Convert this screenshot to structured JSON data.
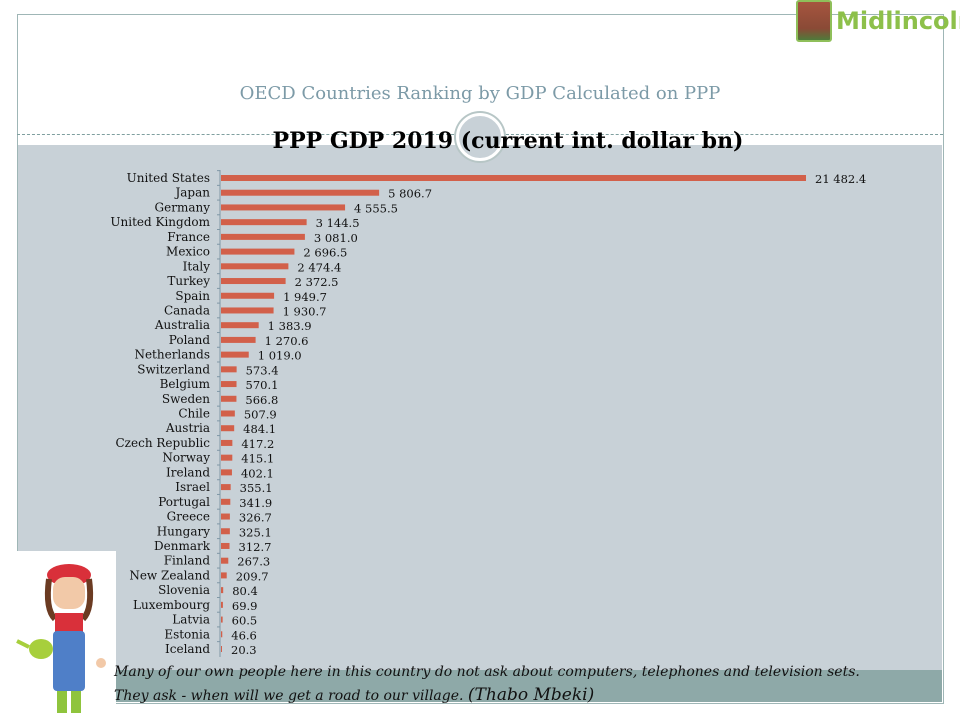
{
  "logo": {
    "text": "Midlincoln"
  },
  "header": {
    "subtitle": "OECD Countries Ranking by GDP Calculated on PPP"
  },
  "chart_data": {
    "type": "bar",
    "orientation": "horizontal",
    "title": "PPP GDP 2019 (current int. dollar bn)",
    "xlabel": "",
    "ylabel": "",
    "categories": [
      "United States",
      "Japan",
      "Germany",
      "United Kingdom",
      "France",
      "Mexico",
      "Italy",
      "Turkey",
      "Spain",
      "Canada",
      "Australia",
      "Poland",
      "Netherlands",
      "Switzerland",
      "Belgium",
      "Sweden",
      "Chile",
      "Austria",
      "Czech Republic",
      "Norway",
      "Ireland",
      "Israel",
      "Portugal",
      "Greece",
      "Hungary",
      "Denmark",
      "Finland",
      "New Zealand",
      "Slovenia",
      "Luxembourg",
      "Latvia",
      "Estonia",
      "Iceland"
    ],
    "values": [
      21482.4,
      5806.7,
      4555.5,
      3144.5,
      3081.0,
      2696.5,
      2474.4,
      2372.5,
      1949.7,
      1930.7,
      1383.9,
      1270.6,
      1019.0,
      573.4,
      570.1,
      566.8,
      507.9,
      484.1,
      417.2,
      415.1,
      402.1,
      355.1,
      341.9,
      326.7,
      325.1,
      312.7,
      267.3,
      209.7,
      80.4,
      69.9,
      60.5,
      46.6,
      20.3
    ],
    "labels": [
      "21 482.4",
      "5 806.7",
      "4 555.5",
      "3 144.5",
      "3 081.0",
      "2 696.5",
      "2 474.4",
      "2 372.5",
      "1 949.7",
      "1 930.7",
      "1 383.9",
      "1 270.6",
      "1 019.0",
      "573.4",
      "570.1",
      "566.8",
      "507.9",
      "484.1",
      "417.2",
      "415.1",
      "402.1",
      "355.1",
      "341.9",
      "326.7",
      "325.1",
      "312.7",
      "267.3",
      "209.7",
      "80.4",
      "69.9",
      "60.5",
      "46.6",
      "20.3"
    ],
    "bar_color": "#d2604a",
    "grid": false,
    "legend": "none"
  },
  "quote": {
    "line1": "Many of our own people here in this country do not ask about computers, telephones and television sets.",
    "line2": "They ask - when will we get a road to our village.",
    "author": "(Thabo Mbeki)"
  }
}
